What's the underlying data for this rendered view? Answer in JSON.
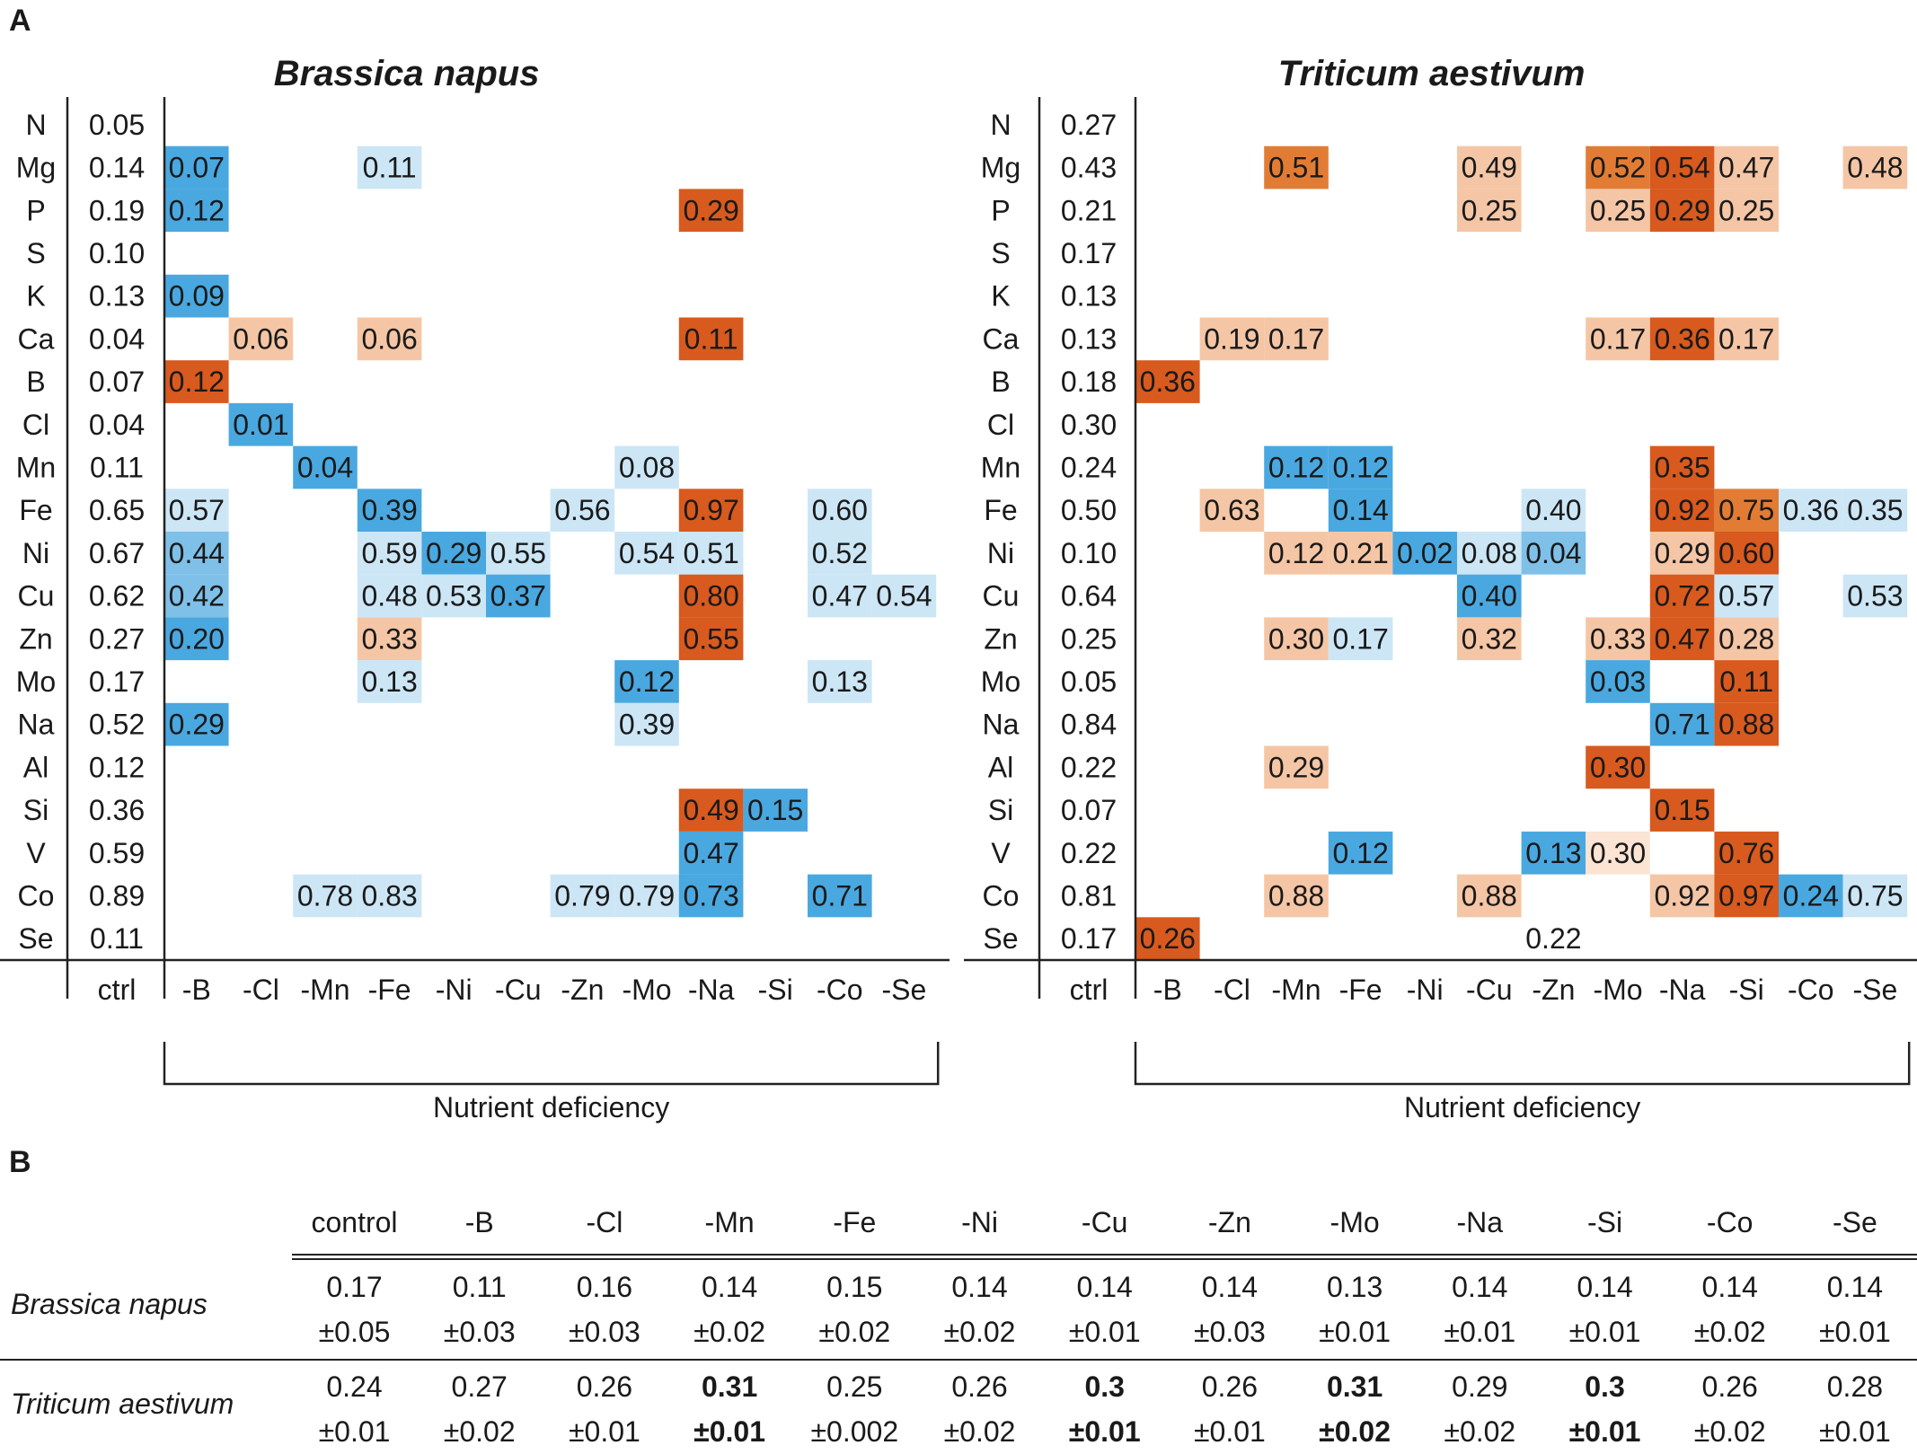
{
  "panel_labels": {
    "a": "A",
    "b": "B"
  },
  "chart_data": [
    {
      "type": "heatmap",
      "title": "Brassica napus",
      "xlabel": "Nutrient deficiency",
      "ctrl_label": "ctrl",
      "rows": [
        "N",
        "Mg",
        "P",
        "S",
        "K",
        "Ca",
        "B",
        "Cl",
        "Mn",
        "Fe",
        "Ni",
        "Cu",
        "Zn",
        "Mo",
        "Na",
        "Al",
        "Si",
        "V",
        "Co",
        "Se"
      ],
      "ctrl": [
        "0.05",
        "0.14",
        "0.19",
        "0.10",
        "0.13",
        "0.04",
        "0.07",
        "0.04",
        "0.11",
        "0.65",
        "0.67",
        "0.62",
        "0.27",
        "0.17",
        "0.52",
        "0.12",
        "0.36",
        "0.59",
        "0.89",
        "0.11"
      ],
      "columns": [
        "-B",
        "-Cl",
        "-Mn",
        "-Fe",
        "-Ni",
        "-Cu",
        "-Zn",
        "-Mo",
        "-Na",
        "-Si",
        "-Co",
        "-Se"
      ],
      "cells": [
        {
          "row": "Mg",
          "col": "-B",
          "value": "0.07",
          "level": "down-strong"
        },
        {
          "row": "Mg",
          "col": "-Fe",
          "value": "0.11",
          "level": "down-light"
        },
        {
          "row": "P",
          "col": "-B",
          "value": "0.12",
          "level": "down-strong"
        },
        {
          "row": "P",
          "col": "-Na",
          "value": "0.29",
          "level": "up-strong"
        },
        {
          "row": "K",
          "col": "-B",
          "value": "0.09",
          "level": "down-strong"
        },
        {
          "row": "Ca",
          "col": "-Cl",
          "value": "0.06",
          "level": "up-light"
        },
        {
          "row": "Ca",
          "col": "-Fe",
          "value": "0.06",
          "level": "up-light"
        },
        {
          "row": "Ca",
          "col": "-Na",
          "value": "0.11",
          "level": "up-strong"
        },
        {
          "row": "B",
          "col": "-B",
          "value": "0.12",
          "level": "up-strong"
        },
        {
          "row": "Cl",
          "col": "-Cl",
          "value": "0.01",
          "level": "down-strong"
        },
        {
          "row": "Mn",
          "col": "-Mn",
          "value": "0.04",
          "level": "down-strong"
        },
        {
          "row": "Mn",
          "col": "-Mo",
          "value": "0.08",
          "level": "down-light"
        },
        {
          "row": "Fe",
          "col": "-B",
          "value": "0.57",
          "level": "down-light"
        },
        {
          "row": "Fe",
          "col": "-Fe",
          "value": "0.39",
          "level": "down-strong"
        },
        {
          "row": "Fe",
          "col": "-Zn",
          "value": "0.56",
          "level": "down-light"
        },
        {
          "row": "Fe",
          "col": "-Na",
          "value": "0.97",
          "level": "up-strong"
        },
        {
          "row": "Fe",
          "col": "-Co",
          "value": "0.60",
          "level": "down-light"
        },
        {
          "row": "Ni",
          "col": "-B",
          "value": "0.44",
          "level": "down-mid"
        },
        {
          "row": "Ni",
          "col": "-Fe",
          "value": "0.59",
          "level": "down-light"
        },
        {
          "row": "Ni",
          "col": "-Ni",
          "value": "0.29",
          "level": "down-strong"
        },
        {
          "row": "Ni",
          "col": "-Cu",
          "value": "0.55",
          "level": "down-light"
        },
        {
          "row": "Ni",
          "col": "-Mo",
          "value": "0.54",
          "level": "down-light"
        },
        {
          "row": "Ni",
          "col": "-Na",
          "value": "0.51",
          "level": "down-light"
        },
        {
          "row": "Ni",
          "col": "-Co",
          "value": "0.52",
          "level": "down-light"
        },
        {
          "row": "Cu",
          "col": "-B",
          "value": "0.42",
          "level": "down-mid"
        },
        {
          "row": "Cu",
          "col": "-Fe",
          "value": "0.48",
          "level": "down-light"
        },
        {
          "row": "Cu",
          "col": "-Ni",
          "value": "0.53",
          "level": "down-light"
        },
        {
          "row": "Cu",
          "col": "-Cu",
          "value": "0.37",
          "level": "down-strong"
        },
        {
          "row": "Cu",
          "col": "-Na",
          "value": "0.80",
          "level": "up-strong"
        },
        {
          "row": "Cu",
          "col": "-Co",
          "value": "0.47",
          "level": "down-light"
        },
        {
          "row": "Cu",
          "col": "-Se",
          "value": "0.54",
          "level": "down-light"
        },
        {
          "row": "Zn",
          "col": "-B",
          "value": "0.20",
          "level": "down-strong"
        },
        {
          "row": "Zn",
          "col": "-Fe",
          "value": "0.33",
          "level": "up-light"
        },
        {
          "row": "Zn",
          "col": "-Na",
          "value": "0.55",
          "level": "up-strong"
        },
        {
          "row": "Mo",
          "col": "-Fe",
          "value": "0.13",
          "level": "down-light"
        },
        {
          "row": "Mo",
          "col": "-Mo",
          "value": "0.12",
          "level": "down-strong"
        },
        {
          "row": "Mo",
          "col": "-Co",
          "value": "0.13",
          "level": "down-light"
        },
        {
          "row": "Na",
          "col": "-B",
          "value": "0.29",
          "level": "down-strong"
        },
        {
          "row": "Na",
          "col": "-Mo",
          "value": "0.39",
          "level": "down-light"
        },
        {
          "row": "Si",
          "col": "-Na",
          "value": "0.49",
          "level": "up-strong"
        },
        {
          "row": "Si",
          "col": "-Si",
          "value": "0.15",
          "level": "down-strong"
        },
        {
          "row": "V",
          "col": "-Na",
          "value": "0.47",
          "level": "down-strong"
        },
        {
          "row": "Co",
          "col": "-Mn",
          "value": "0.78",
          "level": "down-light"
        },
        {
          "row": "Co",
          "col": "-Fe",
          "value": "0.83",
          "level": "down-light"
        },
        {
          "row": "Co",
          "col": "-Zn",
          "value": "0.79",
          "level": "down-light"
        },
        {
          "row": "Co",
          "col": "-Mo",
          "value": "0.79",
          "level": "down-light"
        },
        {
          "row": "Co",
          "col": "-Na",
          "value": "0.73",
          "level": "down-strong"
        },
        {
          "row": "Co",
          "col": "-Co",
          "value": "0.71",
          "level": "down-strong"
        }
      ]
    },
    {
      "type": "heatmap",
      "title": "Triticum aestivum",
      "xlabel": "Nutrient deficiency",
      "ctrl_label": "ctrl",
      "rows": [
        "N",
        "Mg",
        "P",
        "S",
        "K",
        "Ca",
        "B",
        "Cl",
        "Mn",
        "Fe",
        "Ni",
        "Cu",
        "Zn",
        "Mo",
        "Na",
        "Al",
        "Si",
        "V",
        "Co",
        "Se"
      ],
      "ctrl": [
        "0.27",
        "0.43",
        "0.21",
        "0.17",
        "0.13",
        "0.13",
        "0.18",
        "0.30",
        "0.24",
        "0.50",
        "0.10",
        "0.64",
        "0.25",
        "0.05",
        "0.84",
        "0.22",
        "0.07",
        "0.22",
        "0.81",
        "0.17"
      ],
      "columns": [
        "-B",
        "-Cl",
        "-Mn",
        "-Fe",
        "-Ni",
        "-Cu",
        "-Zn",
        "-Mo",
        "-Na",
        "-Si",
        "-Co",
        "-Se"
      ],
      "cells": [
        {
          "row": "Mg",
          "col": "-Mn",
          "value": "0.51",
          "level": "up-mid"
        },
        {
          "row": "Mg",
          "col": "-Cu",
          "value": "0.49",
          "level": "up-light"
        },
        {
          "row": "Mg",
          "col": "-Mo",
          "value": "0.52",
          "level": "up-mid"
        },
        {
          "row": "Mg",
          "col": "-Na",
          "value": "0.54",
          "level": "up-strong"
        },
        {
          "row": "Mg",
          "col": "-Si",
          "value": "0.47",
          "level": "up-light"
        },
        {
          "row": "Mg",
          "col": "-Se",
          "value": "0.48",
          "level": "up-light"
        },
        {
          "row": "P",
          "col": "-Cu",
          "value": "0.25",
          "level": "up-light"
        },
        {
          "row": "P",
          "col": "-Mo",
          "value": "0.25",
          "level": "up-light"
        },
        {
          "row": "P",
          "col": "-Na",
          "value": "0.29",
          "level": "up-strong"
        },
        {
          "row": "P",
          "col": "-Si",
          "value": "0.25",
          "level": "up-light"
        },
        {
          "row": "Ca",
          "col": "-Cl",
          "value": "0.19",
          "level": "up-light"
        },
        {
          "row": "Ca",
          "col": "-Mn",
          "value": "0.17",
          "level": "up-light"
        },
        {
          "row": "Ca",
          "col": "-Mo",
          "value": "0.17",
          "level": "up-light"
        },
        {
          "row": "Ca",
          "col": "-Na",
          "value": "0.36",
          "level": "up-strong"
        },
        {
          "row": "Ca",
          "col": "-Si",
          "value": "0.17",
          "level": "up-light"
        },
        {
          "row": "B",
          "col": "-B",
          "value": "0.36",
          "level": "up-strong"
        },
        {
          "row": "Mn",
          "col": "-Mn",
          "value": "0.12",
          "level": "down-strong"
        },
        {
          "row": "Mn",
          "col": "-Fe",
          "value": "0.12",
          "level": "down-strong"
        },
        {
          "row": "Mn",
          "col": "-Na",
          "value": "0.35",
          "level": "up-strong"
        },
        {
          "row": "Fe",
          "col": "-Cl",
          "value": "0.63",
          "level": "up-light"
        },
        {
          "row": "Fe",
          "col": "-Fe",
          "value": "0.14",
          "level": "down-strong"
        },
        {
          "row": "Fe",
          "col": "-Zn",
          "value": "0.40",
          "level": "down-light"
        },
        {
          "row": "Fe",
          "col": "-Na",
          "value": "0.92",
          "level": "up-strong"
        },
        {
          "row": "Fe",
          "col": "-Si",
          "value": "0.75",
          "level": "up-mid"
        },
        {
          "row": "Fe",
          "col": "-Co",
          "value": "0.36",
          "level": "down-light"
        },
        {
          "row": "Fe",
          "col": "-Se",
          "value": "0.35",
          "level": "down-light"
        },
        {
          "row": "Ni",
          "col": "-Mn",
          "value": "0.12",
          "level": "up-light"
        },
        {
          "row": "Ni",
          "col": "-Fe",
          "value": "0.21",
          "level": "up-light"
        },
        {
          "row": "Ni",
          "col": "-Ni",
          "value": "0.02",
          "level": "down-strong"
        },
        {
          "row": "Ni",
          "col": "-Cu",
          "value": "0.08",
          "level": "down-light"
        },
        {
          "row": "Ni",
          "col": "-Zn",
          "value": "0.04",
          "level": "down-mid"
        },
        {
          "row": "Ni",
          "col": "-Na",
          "value": "0.29",
          "level": "up-light"
        },
        {
          "row": "Ni",
          "col": "-Si",
          "value": "0.60",
          "level": "up-strong"
        },
        {
          "row": "Cu",
          "col": "-Cu",
          "value": "0.40",
          "level": "down-strong"
        },
        {
          "row": "Cu",
          "col": "-Na",
          "value": "0.72",
          "level": "up-strong"
        },
        {
          "row": "Cu",
          "col": "-Si",
          "value": "0.57",
          "level": "down-light"
        },
        {
          "row": "Cu",
          "col": "-Se",
          "value": "0.53",
          "level": "down-light"
        },
        {
          "row": "Zn",
          "col": "-Mn",
          "value": "0.30",
          "level": "up-light"
        },
        {
          "row": "Zn",
          "col": "-Fe",
          "value": "0.17",
          "level": "down-light"
        },
        {
          "row": "Zn",
          "col": "-Cu",
          "value": "0.32",
          "level": "up-light"
        },
        {
          "row": "Zn",
          "col": "-Mo",
          "value": "0.33",
          "level": "up-light"
        },
        {
          "row": "Zn",
          "col": "-Na",
          "value": "0.47",
          "level": "up-strong"
        },
        {
          "row": "Zn",
          "col": "-Si",
          "value": "0.28",
          "level": "up-light"
        },
        {
          "row": "Mo",
          "col": "-Mo",
          "value": "0.03",
          "level": "down-strong"
        },
        {
          "row": "Mo",
          "col": "-Si",
          "value": "0.11",
          "level": "up-strong"
        },
        {
          "row": "Na",
          "col": "-Na",
          "value": "0.71",
          "level": "down-strong"
        },
        {
          "row": "Na",
          "col": "-Si",
          "value": "0.88",
          "level": "up-strong"
        },
        {
          "row": "Al",
          "col": "-Mn",
          "value": "0.29",
          "level": "up-light"
        },
        {
          "row": "Al",
          "col": "-Mo",
          "value": "0.30",
          "level": "up-strong"
        },
        {
          "row": "Si",
          "col": "-Na",
          "value": "0.15",
          "level": "up-strong"
        },
        {
          "row": "V",
          "col": "-Fe",
          "value": "0.12",
          "level": "down-strong"
        },
        {
          "row": "V",
          "col": "-Zn",
          "value": "0.13",
          "level": "down-strong"
        },
        {
          "row": "V",
          "col": "-Mo",
          "value": "0.30",
          "level": "up-faint"
        },
        {
          "row": "V",
          "col": "-Si",
          "value": "0.76",
          "level": "up-strong"
        },
        {
          "row": "Co",
          "col": "-Mn",
          "value": "0.88",
          "level": "up-light"
        },
        {
          "row": "Co",
          "col": "-Cu",
          "value": "0.88",
          "level": "up-light"
        },
        {
          "row": "Co",
          "col": "-Na",
          "value": "0.92",
          "level": "up-light"
        },
        {
          "row": "Co",
          "col": "-Si",
          "value": "0.97",
          "level": "up-strong"
        },
        {
          "row": "Co",
          "col": "-Co",
          "value": "0.24",
          "level": "down-strong"
        },
        {
          "row": "Co",
          "col": "-Se",
          "value": "0.75",
          "level": "down-light"
        },
        {
          "row": "Se",
          "col": "-B",
          "value": "0.26",
          "level": "up-strong"
        },
        {
          "row": "Se",
          "col": "-Zn",
          "value": "0.22",
          "level": "none"
        }
      ]
    },
    {
      "type": "table",
      "columns": [
        "control",
        "-B",
        "-Cl",
        "-Mn",
        "-Fe",
        "-Ni",
        "-Cu",
        "-Zn",
        "-Mo",
        "-Na",
        "-Si",
        "-Co",
        "-Se"
      ],
      "rows": [
        {
          "species": "Brassica napus",
          "means": [
            "0.17",
            "0.11",
            "0.16",
            "0.14",
            "0.15",
            "0.14",
            "0.14",
            "0.14",
            "0.13",
            "0.14",
            "0.14",
            "0.14",
            "0.14"
          ],
          "sds": [
            "±0.05",
            "±0.03",
            "±0.03",
            "±0.02",
            "±0.02",
            "±0.02",
            "±0.01",
            "±0.03",
            "±0.01",
            "±0.01",
            "±0.01",
            "±0.02",
            "±0.01"
          ],
          "bold": [
            false,
            false,
            false,
            false,
            false,
            false,
            false,
            false,
            false,
            false,
            false,
            false,
            false
          ]
        },
        {
          "species": "Triticum aestivum",
          "means": [
            "0.24",
            "0.27",
            "0.26",
            "0.31",
            "0.25",
            "0.26",
            "0.3",
            "0.26",
            "0.31",
            "0.29",
            "0.3",
            "0.26",
            "0.28"
          ],
          "sds": [
            "±0.01",
            "±0.02",
            "±0.01",
            "±0.01",
            "±0.002",
            "±0.02",
            "±0.01",
            "±0.01",
            "±0.02",
            "±0.02",
            "±0.01",
            "±0.02",
            "±0.01"
          ],
          "bold": [
            false,
            false,
            false,
            true,
            false,
            false,
            true,
            false,
            true,
            false,
            true,
            false,
            false
          ]
        }
      ]
    }
  ],
  "colors": {
    "down-strong": "#4aa8e0",
    "down-mid": "#7fc0e8",
    "down-light": "#cce6f6",
    "up-strong": "#d85a1e",
    "up-mid": "#e27c35",
    "up-light": "#f5c6a5",
    "up-faint": "#fbe4d3",
    "axis": "#222222",
    "text": "#1a1a1a"
  }
}
